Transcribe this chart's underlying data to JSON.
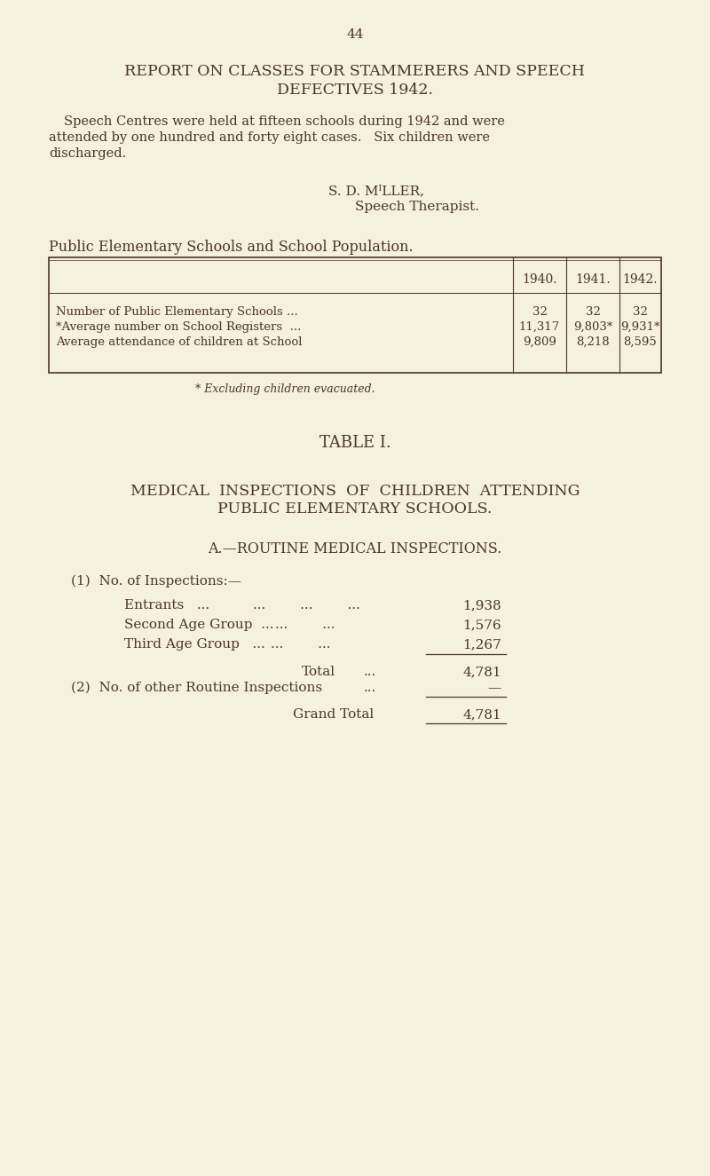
{
  "bg_color": "#f5f0e0",
  "text_color": "#4a3728",
  "page_number": "44",
  "title_line1": "REPORT ON CLASSES FOR STAMMERERS AND SPEECH",
  "title_line2": "DEFECTIVES 1942.",
  "para_line1": "Speech Centres were held at fifteen schools during 1942 and were",
  "para_line2": "attended by one hundred and forty eight cases.   Six children were",
  "para_line3": "discharged.",
  "sig1": "S. D. MᴵLLER,",
  "sig2": "Speech Therapist.",
  "section_heading": "Public Elementary Schools and School Population.",
  "table1_col_headers": [
    "1940.",
    "1941.",
    "1942."
  ],
  "table1_rows": [
    [
      "Number of Public Elementary Schools ...",
      "32",
      "32",
      "32"
    ],
    [
      "*Average number on School Registers  ...",
      "11,317",
      "9,803*",
      "9,931*"
    ],
    [
      "Average attendance of children at School",
      "9,809",
      "8,218",
      "8,595"
    ]
  ],
  "footnote": "* Excluding children evacuated.",
  "table_title": "TABLE I.",
  "medical_heading1": "MEDICAL  INSPECTIONS  OF  CHILDREN  ATTENDING",
  "medical_heading2": "PUBLIC ELEMENTARY SCHOOLS.",
  "routine_heading": "A.—ROUTINE MEDICAL INSPECTIONS.",
  "insp_label": "(1)  No. of Inspections:—",
  "entrants_label": "Entrants   ...",
  "entrants_dots": "...        ...        ...",
  "entrants_value": "1,938",
  "second_label": "Second Age Group  ...",
  "second_dots": "...        ...",
  "second_value": "1,576",
  "third_label": "Third Age Group   ...",
  "third_dots": "...        ...",
  "third_value": "1,267",
  "total_label": "Total",
  "total_dots": "...",
  "total_value": "4,781",
  "other_label": "(2)  No. of other Routine Inspections",
  "other_dots": "...",
  "other_value": "—",
  "grand_label": "Grand Total",
  "grand_value": "4,781"
}
